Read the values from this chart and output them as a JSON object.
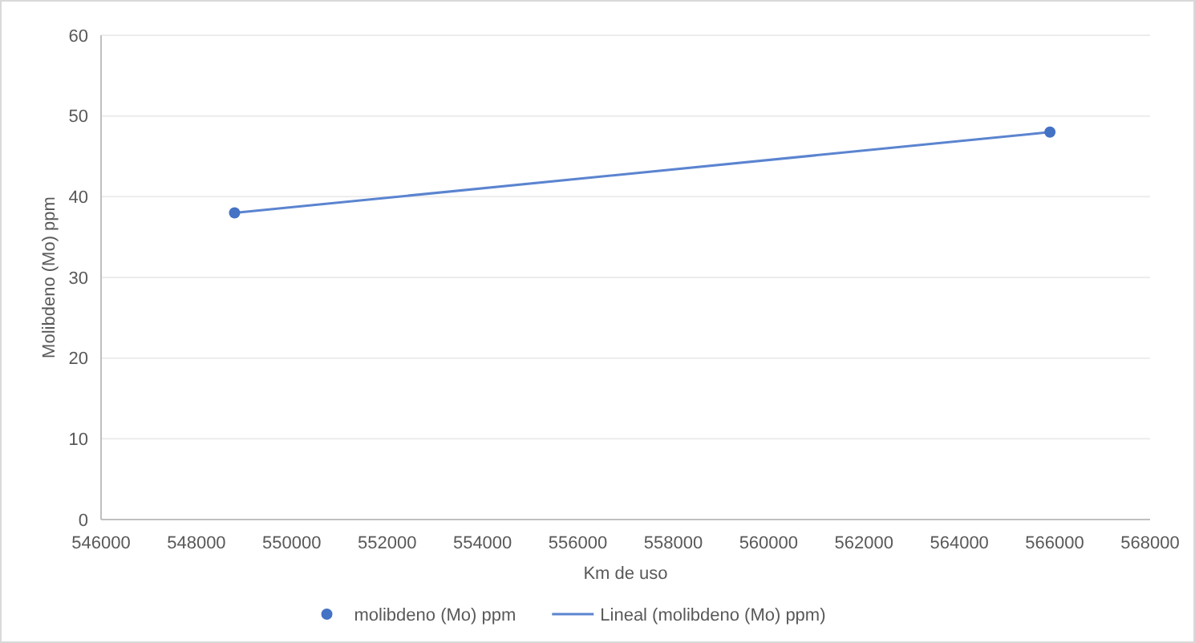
{
  "chart_data": {
    "type": "scatter",
    "xlabel": "Km de uso",
    "ylabel": "Molibdeno (Mo) ppm",
    "xlim": [
      546000,
      568000
    ],
    "xticks": [
      546000,
      548000,
      550000,
      552000,
      554000,
      556000,
      558000,
      560000,
      562000,
      564000,
      566000,
      568000
    ],
    "x": [
      548800,
      565900
    ],
    "ylim": [
      0,
      60
    ],
    "yticks": [
      0,
      10,
      20,
      30,
      40,
      50,
      60
    ],
    "grid": "y",
    "legend": "bottom",
    "series": [
      {
        "name": "molibdeno (Mo) ppm",
        "marker": "circle",
        "color": "#4472c4",
        "values": [
          38,
          48
        ]
      },
      {
        "name": "Lineal (molibdeno (Mo) ppm)",
        "type": "line",
        "color": "#5b84d0",
        "line_style": "solid",
        "values": [
          38,
          48
        ]
      }
    ]
  }
}
